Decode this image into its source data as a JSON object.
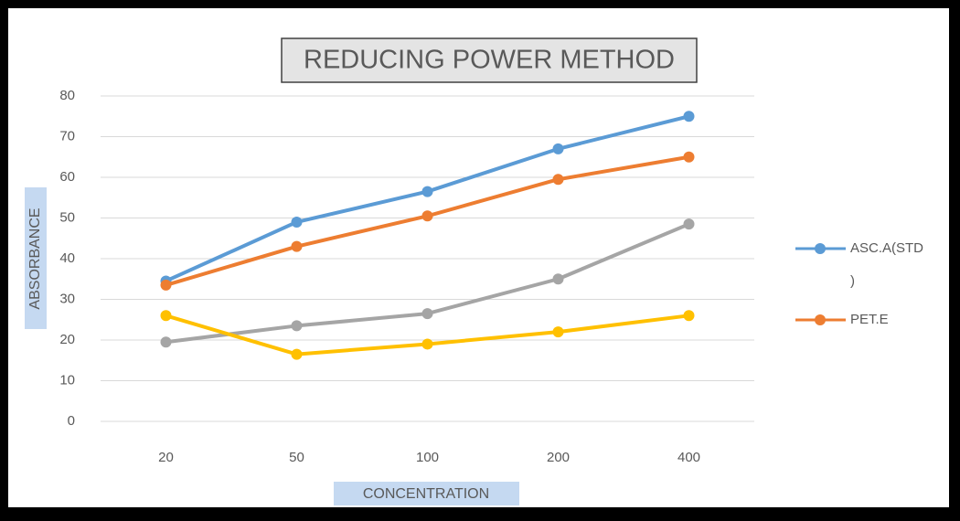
{
  "chart_data": {
    "type": "line",
    "title": "REDUCING POWER METHOD",
    "xlabel": "CONCENTRATION",
    "ylabel": "ABSORBANCE",
    "categories": [
      20,
      50,
      100,
      200,
      400
    ],
    "series": [
      {
        "name": "ASC.A(STD)",
        "color": "#5b9bd5",
        "values": [
          34.5,
          49,
          56.5,
          67,
          75
        ]
      },
      {
        "name": "PET.E",
        "color": "#ed7d31",
        "values": [
          33.5,
          43,
          50.5,
          59.5,
          65
        ]
      },
      {
        "color": "#a5a5a5",
        "values": [
          19.5,
          23.5,
          26.5,
          35,
          48.5
        ]
      },
      {
        "color": "#ffc000",
        "values": [
          26,
          16.5,
          19,
          22,
          26
        ]
      }
    ],
    "ylim": [
      0,
      80
    ],
    "yticks": [
      0,
      10,
      20,
      30,
      40,
      50,
      60,
      70,
      80
    ],
    "grid": true,
    "legend": "right"
  }
}
